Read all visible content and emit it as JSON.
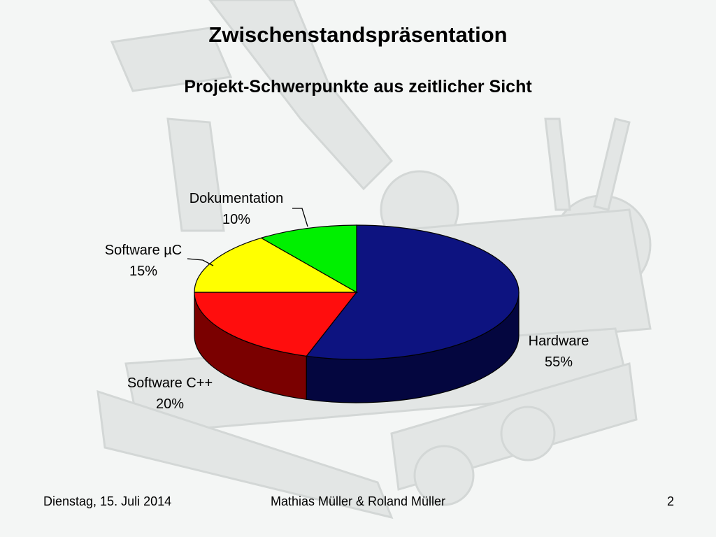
{
  "slide": {
    "title": "Zwischenstandspräsentation",
    "subtitle": "Projekt-Schwerpunkte aus zeitlicher Sicht"
  },
  "chart_data": {
    "type": "pie",
    "title": "Projekt-Schwerpunkte aus zeitlicher Sicht",
    "three_d": true,
    "legend": "none",
    "slices": [
      {
        "label": "Hardware",
        "value": 55,
        "value_label": "55%",
        "color": "#0d1380",
        "side_color": "#04063f"
      },
      {
        "label": "Software C++",
        "value": 20,
        "value_label": "20%",
        "color": "#ff0d0d",
        "side_color": "#7a0000"
      },
      {
        "label": "Software µC",
        "value": 15,
        "value_label": "15%",
        "color": "#ffff00",
        "side_color": "#7a7a00"
      },
      {
        "label": "Dokumentation",
        "value": 10,
        "value_label": "10%",
        "color": "#00f000",
        "side_color": "#006b00"
      }
    ]
  },
  "footer": {
    "date": "Dienstag, 15. Juli 2014",
    "authors": "Mathias Müller & Roland Müller",
    "page": "2"
  }
}
